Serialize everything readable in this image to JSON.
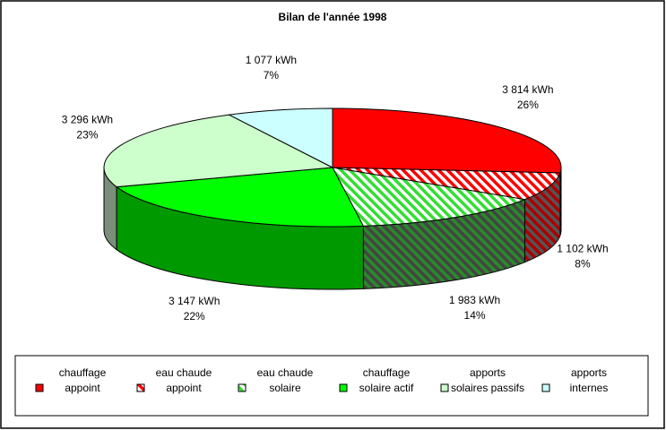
{
  "chart_data": {
    "type": "pie",
    "title": "Bilan de l'année 1998",
    "unit": "kWh",
    "slices": [
      {
        "value": 3814,
        "value_label": "3 814 kWh",
        "percent_label": "26%",
        "legend": [
          "chauffage",
          "appoint"
        ],
        "color": "#ff0000",
        "pattern": "solid"
      },
      {
        "value": 1102,
        "value_label": "1 102 kWh",
        "percent_label": "8%",
        "legend": [
          "eau chaude",
          "appoint"
        ],
        "color": "#ff0000",
        "pattern": "hatch"
      },
      {
        "value": 1983,
        "value_label": "1 983 kWh",
        "percent_label": "14%",
        "legend": [
          "eau chaude",
          "solaire"
        ],
        "color": "#00cc00",
        "pattern": "hatch"
      },
      {
        "value": 3147,
        "value_label": "3 147 kWh",
        "percent_label": "22%",
        "legend": [
          "chauffage",
          "solaire actif"
        ],
        "color": "#00ff00",
        "pattern": "solid"
      },
      {
        "value": 3296,
        "value_label": "3 296 kWh",
        "percent_label": "23%",
        "legend": [
          "apports",
          "solaires passifs"
        ],
        "color": "#ccffcc",
        "pattern": "solid"
      },
      {
        "value": 1077,
        "value_label": "1 077 kWh",
        "percent_label": "7%",
        "legend": [
          "apports",
          "internes"
        ],
        "color": "#ccffff",
        "pattern": "solid"
      }
    ],
    "legend_position": "bottom"
  }
}
